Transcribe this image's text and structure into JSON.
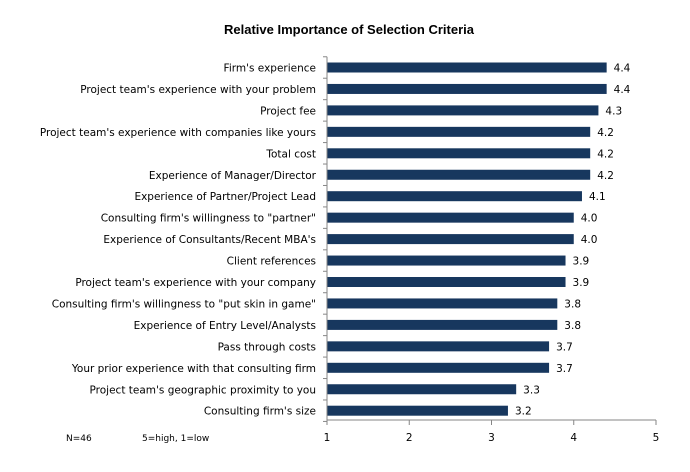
{
  "chart_data": {
    "type": "bar",
    "orientation": "horizontal",
    "title": "Relative Importance of Selection Criteria",
    "categories": [
      "Firm's experience",
      "Project team's experience with your problem",
      "Project fee",
      "Project team's experience with companies like yours",
      "Total cost",
      "Experience of Manager/Director",
      "Experience of Partner/Project Lead",
      "Consulting firm's willingness to \"partner\"",
      "Experience of Consultants/Recent MBA's",
      "Client references",
      "Project team's experience with your company",
      "Consulting firm's willingness to \"put skin in game\"",
      "Experience of Entry Level/Analysts",
      "Pass through costs",
      "Your prior experience with that consulting firm",
      "Project team's geographic proximity to you",
      "Consulting firm's size"
    ],
    "values": [
      4.4,
      4.4,
      4.3,
      4.2,
      4.2,
      4.2,
      4.1,
      4.0,
      4.0,
      3.9,
      3.9,
      3.8,
      3.8,
      3.7,
      3.7,
      3.3,
      3.2
    ],
    "value_labels": [
      "4.4",
      "4.4",
      "4.3",
      "4.2",
      "4.2",
      "4.2",
      "4.1",
      "4.0",
      "4.0",
      "3.9",
      "3.9",
      "3.8",
      "3.8",
      "3.7",
      "3.7",
      "3.3",
      "3.2"
    ],
    "xlim": [
      1,
      5
    ],
    "xticks": [
      "1",
      "2",
      "3",
      "4",
      "5"
    ],
    "bar_color": "#17375E",
    "grid": false,
    "legend": "none"
  },
  "notes": {
    "sample": "N=46",
    "scale": "5=high, 1=low"
  }
}
